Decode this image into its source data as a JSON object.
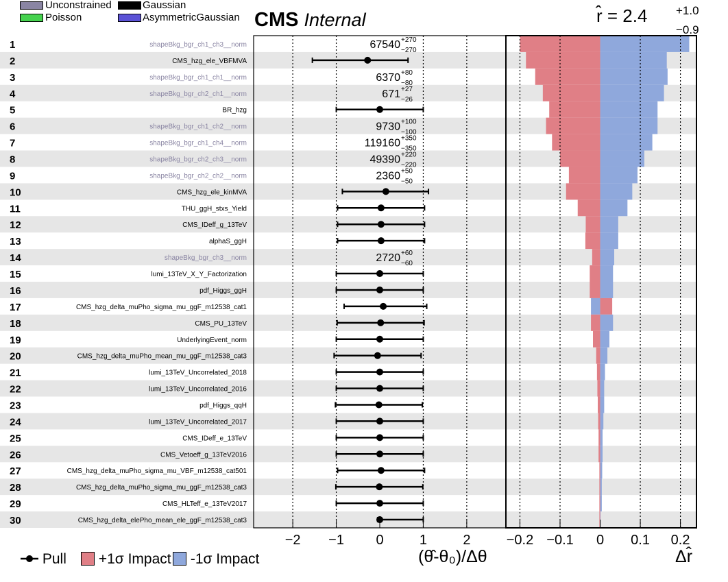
{
  "legend_top": {
    "items": [
      {
        "label": "Unconstrained",
        "color": "#8a85a3"
      },
      {
        "label": "Gaussian",
        "color": "#000000"
      },
      {
        "label": "Poisson",
        "color": "#45d24e"
      },
      {
        "label": "AsymmetricGaussian",
        "color": "#5b52d6"
      }
    ]
  },
  "header": {
    "cms": "CMS",
    "internal": "Internal",
    "rhat": "r̂ = 2.4",
    "rhat_up": "+1.0",
    "rhat_down": "−0.9"
  },
  "bottom_legend": {
    "pull": "Pull",
    "plus_impact": "+1σ Impact",
    "minus_impact": "-1σ Impact",
    "plus_color": "#e07f86",
    "minus_color": "#8fa8dc"
  },
  "axes": {
    "pull_xlabel": "(θ̂-θ₀)/Δθ",
    "impact_xlabel": "Δr̂",
    "pull_ticks": [
      "−2",
      "−1",
      "0",
      "1",
      "2"
    ],
    "impact_ticks": [
      "−0.2",
      "−0.1",
      "0",
      "0.1",
      "0.2"
    ]
  },
  "chart_data": {
    "type": "bar",
    "pull_xlim": [
      -2.9,
      2.9
    ],
    "impact_xlim": [
      -0.235,
      0.24
    ],
    "rows": [
      {
        "rank": "1",
        "name": "shapeBkg_bgr_ch1_ch3__norm",
        "unconstrained": true,
        "fit": "67540",
        "up": "+270",
        "down": "−270",
        "imp_up": -0.2,
        "imp_down": 0.222
      },
      {
        "rank": "2",
        "name": "CMS_hzg_ele_VBFMVA",
        "unconstrained": false,
        "pull": -0.28,
        "perr_lo": 1.27,
        "perr_hi": 0.93,
        "imp_up": -0.185,
        "imp_down": 0.166
      },
      {
        "rank": "3",
        "name": "shapeBkg_bgr_ch1_ch1__norm",
        "unconstrained": true,
        "fit": "6370",
        "up": "+80",
        "down": "−80",
        "imp_up": -0.162,
        "imp_down": 0.168
      },
      {
        "rank": "4",
        "name": "shapeBkg_bgr_ch2_ch1__norm",
        "unconstrained": true,
        "fit": "671",
        "up": "+27",
        "down": "−26",
        "imp_up": -0.143,
        "imp_down": 0.159
      },
      {
        "rank": "5",
        "name": "BR_hzg",
        "unconstrained": false,
        "pull": 0.0,
        "perr_lo": 1.0,
        "perr_hi": 1.0,
        "imp_up": -0.127,
        "imp_down": 0.143
      },
      {
        "rank": "6",
        "name": "shapeBkg_bgr_ch1_ch2__norm",
        "unconstrained": true,
        "fit": "9730",
        "up": "+100",
        "down": "−100",
        "imp_up": -0.135,
        "imp_down": 0.143
      },
      {
        "rank": "7",
        "name": "shapeBkg_bgr_ch1_ch4__norm",
        "unconstrained": true,
        "fit": "119160",
        "up": "+350",
        "down": "−350",
        "imp_up": -0.12,
        "imp_down": 0.13
      },
      {
        "rank": "8",
        "name": "shapeBkg_bgr_ch2_ch3__norm",
        "unconstrained": true,
        "fit": "49390",
        "up": "+220",
        "down": "−220",
        "imp_up": -0.1,
        "imp_down": 0.11
      },
      {
        "rank": "9",
        "name": "shapeBkg_bgr_ch2_ch2__norm",
        "unconstrained": true,
        "fit": "2360",
        "up": "+50",
        "down": "−50",
        "imp_up": -0.078,
        "imp_down": 0.093
      },
      {
        "rank": "10",
        "name": "CMS_hzg_ele_kinMVA",
        "unconstrained": false,
        "pull": 0.14,
        "perr_lo": 1.0,
        "perr_hi": 0.98,
        "imp_up": -0.085,
        "imp_down": 0.08
      },
      {
        "rank": "11",
        "name": "THU_ggH_stxs_Yield",
        "unconstrained": false,
        "pull": 0.03,
        "perr_lo": 1.0,
        "perr_hi": 1.0,
        "imp_up": -0.056,
        "imp_down": 0.068
      },
      {
        "rank": "12",
        "name": "CMS_IDeff_g_13TeV",
        "unconstrained": false,
        "pull": 0.03,
        "perr_lo": 1.0,
        "perr_hi": 1.0,
        "imp_up": -0.036,
        "imp_down": 0.045
      },
      {
        "rank": "13",
        "name": "alphaS_ggH",
        "unconstrained": false,
        "pull": 0.03,
        "perr_lo": 1.0,
        "perr_hi": 1.0,
        "imp_up": -0.037,
        "imp_down": 0.045
      },
      {
        "rank": "14",
        "name": "shapeBkg_bgr_ch3__norm",
        "unconstrained": true,
        "fit": "2720",
        "up": "+60",
        "down": "−60",
        "imp_up": -0.02,
        "imp_down": 0.035
      },
      {
        "rank": "15",
        "name": "lumi_13TeV_X_Y_Factorization",
        "unconstrained": false,
        "pull": 0.0,
        "perr_lo": 1.0,
        "perr_hi": 1.0,
        "imp_up": -0.026,
        "imp_down": 0.032
      },
      {
        "rank": "16",
        "name": "pdf_Higgs_ggH",
        "unconstrained": false,
        "pull": 0.0,
        "perr_lo": 1.0,
        "perr_hi": 1.0,
        "imp_up": -0.026,
        "imp_down": 0.032
      },
      {
        "rank": "17",
        "name": "CMS_hzg_delta_muPho_sigma_mu_ggF_m12538_cat1",
        "unconstrained": false,
        "pull": 0.08,
        "perr_lo": 0.9,
        "perr_hi": 1.0,
        "imp_up": 0.03,
        "imp_down": -0.023
      },
      {
        "rank": "18",
        "name": "CMS_PU_13TeV",
        "unconstrained": false,
        "pull": 0.02,
        "perr_lo": 1.0,
        "perr_hi": 1.0,
        "imp_up": -0.023,
        "imp_down": 0.032
      },
      {
        "rank": "19",
        "name": "UnderlyingEvent_norm",
        "unconstrained": false,
        "pull": 0.0,
        "perr_lo": 1.0,
        "perr_hi": 1.0,
        "imp_up": -0.018,
        "imp_down": 0.023
      },
      {
        "rank": "20",
        "name": "CMS_hzg_delta_muPho_mean_mu_ggF_m12538_cat3",
        "unconstrained": false,
        "pull": -0.05,
        "perr_lo": 1.0,
        "perr_hi": 1.0,
        "imp_up": -0.01,
        "imp_down": 0.018
      },
      {
        "rank": "21",
        "name": "lumi_13TeV_Uncorrelated_2018",
        "unconstrained": false,
        "pull": 0.0,
        "perr_lo": 1.0,
        "perr_hi": 1.0,
        "imp_up": -0.008,
        "imp_down": 0.012
      },
      {
        "rank": "22",
        "name": "lumi_13TeV_Uncorrelated_2016",
        "unconstrained": false,
        "pull": 0.0,
        "perr_lo": 1.0,
        "perr_hi": 1.0,
        "imp_up": -0.007,
        "imp_down": 0.01
      },
      {
        "rank": "23",
        "name": "pdf_Higgs_qqH",
        "unconstrained": false,
        "pull": -0.02,
        "perr_lo": 1.0,
        "perr_hi": 1.0,
        "imp_up": -0.006,
        "imp_down": 0.01
      },
      {
        "rank": "24",
        "name": "lumi_13TeV_Uncorrelated_2017",
        "unconstrained": false,
        "pull": 0.0,
        "perr_lo": 1.0,
        "perr_hi": 1.0,
        "imp_up": -0.005,
        "imp_down": 0.008
      },
      {
        "rank": "25",
        "name": "CMS_IDeff_e_13TeV",
        "unconstrained": false,
        "pull": 0.0,
        "perr_lo": 1.0,
        "perr_hi": 1.0,
        "imp_up": -0.004,
        "imp_down": 0.006
      },
      {
        "rank": "26",
        "name": "CMS_Vetoeff_g_13TeV2016",
        "unconstrained": false,
        "pull": 0.0,
        "perr_lo": 1.0,
        "perr_hi": 1.0,
        "imp_up": -0.004,
        "imp_down": 0.006
      },
      {
        "rank": "27",
        "name": "CMS_hzg_delta_muPho_sigma_mu_VBF_m12538_cat501",
        "unconstrained": false,
        "pull": 0.03,
        "perr_lo": 1.0,
        "perr_hi": 1.0,
        "imp_up": -0.002,
        "imp_down": 0.005
      },
      {
        "rank": "28",
        "name": "CMS_hzg_delta_muPho_sigma_mu_ggF_m12538_cat3",
        "unconstrained": false,
        "pull": -0.01,
        "perr_lo": 1.0,
        "perr_hi": 1.0,
        "imp_up": -0.002,
        "imp_down": 0.004
      },
      {
        "rank": "29",
        "name": "CMS_HLTeff_e_13TeV2017",
        "unconstrained": false,
        "pull": 0.0,
        "perr_lo": 1.0,
        "perr_hi": 1.0,
        "imp_up": -0.002,
        "imp_down": 0.004
      },
      {
        "rank": "30",
        "name": "CMS_hzg_delta_elePho_mean_ele_ggF_m12538_cat3",
        "unconstrained": false,
        "pull": 0.0,
        "perr_lo": 0.05,
        "perr_hi": 1.0,
        "imp_up": -0.002,
        "imp_down": 0.001
      }
    ]
  }
}
